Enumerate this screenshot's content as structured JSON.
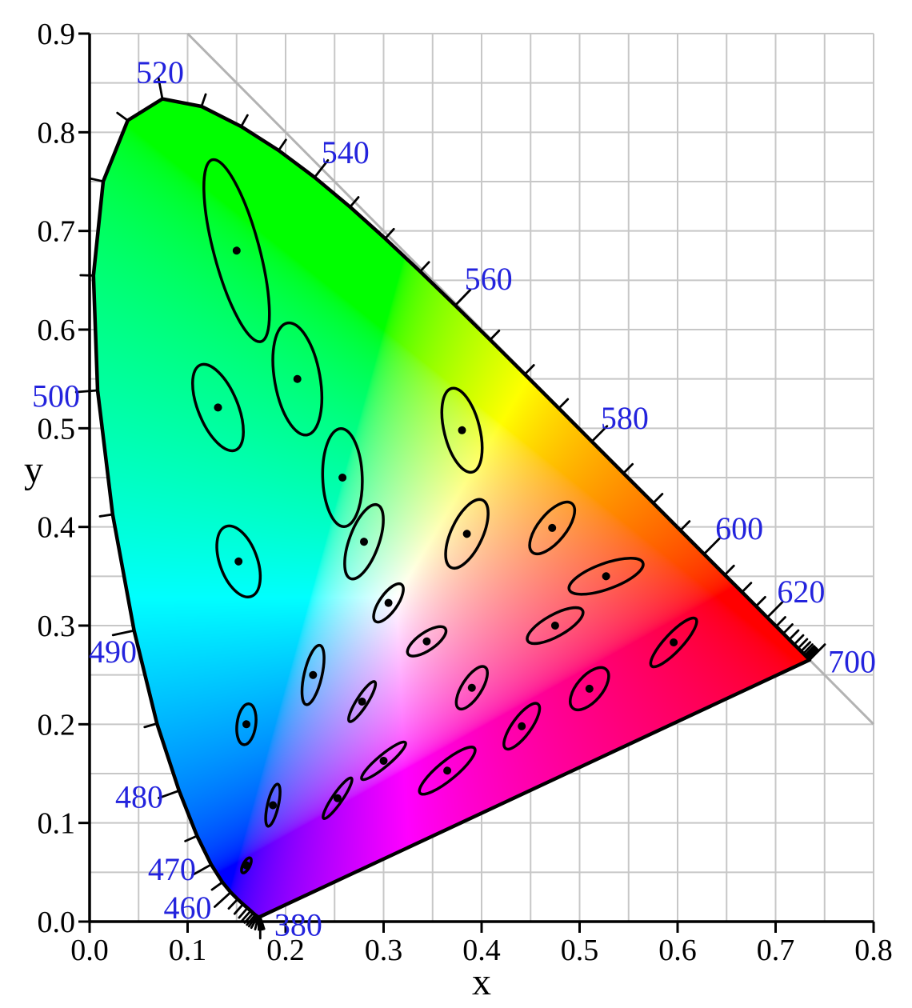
{
  "chart_data": {
    "type": "scatter",
    "variant": "CIE 1931 xy chromaticity diagram with MacAdam ellipses (10x)",
    "title": "",
    "xlabel": "x",
    "ylabel": "y",
    "xlim": [
      0.0,
      0.8
    ],
    "ylim": [
      0.0,
      0.9
    ],
    "x_tick_labels": [
      "0.0",
      "0.1",
      "0.2",
      "0.3",
      "0.4",
      "0.5",
      "0.6",
      "0.7",
      "0.8"
    ],
    "y_tick_labels": [
      "0.0",
      "0.1",
      "0.2",
      "0.3",
      "0.4",
      "0.5",
      "0.6",
      "0.7",
      "0.8",
      "0.9"
    ],
    "grid_step": 0.05,
    "grid_on": true,
    "colors": {
      "wavelength_label_blue": "#2323dd",
      "grid": "#c7c7c7",
      "diagonal_line": "#b3b3b3",
      "locus_stroke": "#000000",
      "axis": "#000000",
      "tick_label": "#000000",
      "background": "#ffffff"
    },
    "diagonal_line": {
      "from": [
        0.1,
        0.9
      ],
      "to": [
        0.8,
        0.2
      ]
    },
    "ellipse_scale": 10,
    "macadam_ellipses": [
      {
        "x": 0.16,
        "y": 0.057,
        "theta": 62.5,
        "a": 0.85,
        "b": 0.35
      },
      {
        "x": 0.187,
        "y": 0.118,
        "theta": 77.0,
        "a": 2.2,
        "b": 0.55
      },
      {
        "x": 0.253,
        "y": 0.125,
        "theta": 55.5,
        "a": 2.5,
        "b": 0.5
      },
      {
        "x": 0.15,
        "y": 0.68,
        "theta": 105.0,
        "a": 9.6,
        "b": 2.3
      },
      {
        "x": 0.131,
        "y": 0.521,
        "theta": 112.5,
        "a": 4.7,
        "b": 2.0
      },
      {
        "x": 0.212,
        "y": 0.55,
        "theta": 100.0,
        "a": 5.8,
        "b": 2.3
      },
      {
        "x": 0.258,
        "y": 0.45,
        "theta": 92.0,
        "a": 5.0,
        "b": 2.0
      },
      {
        "x": 0.152,
        "y": 0.365,
        "theta": 110.0,
        "a": 3.8,
        "b": 1.9
      },
      {
        "x": 0.28,
        "y": 0.385,
        "theta": 70.0,
        "a": 4.0,
        "b": 1.5
      },
      {
        "x": 0.38,
        "y": 0.498,
        "theta": 104.0,
        "a": 4.4,
        "b": 1.8
      },
      {
        "x": 0.16,
        "y": 0.2,
        "theta": 82.5,
        "a": 2.1,
        "b": 0.95
      },
      {
        "x": 0.228,
        "y": 0.25,
        "theta": 77.0,
        "a": 3.1,
        "b": 0.9
      },
      {
        "x": 0.305,
        "y": 0.323,
        "theta": 55.0,
        "a": 2.3,
        "b": 0.9
      },
      {
        "x": 0.385,
        "y": 0.393,
        "theta": 65.0,
        "a": 3.8,
        "b": 1.6
      },
      {
        "x": 0.472,
        "y": 0.399,
        "theta": 51.0,
        "a": 3.2,
        "b": 1.4
      },
      {
        "x": 0.527,
        "y": 0.35,
        "theta": 20.0,
        "a": 4.0,
        "b": 1.3
      },
      {
        "x": 0.475,
        "y": 0.3,
        "theta": 29.0,
        "a": 3.2,
        "b": 1.1
      },
      {
        "x": 0.51,
        "y": 0.236,
        "theta": 49.5,
        "a": 2.6,
        "b": 1.3
      },
      {
        "x": 0.596,
        "y": 0.283,
        "theta": 47.0,
        "a": 3.3,
        "b": 0.9
      },
      {
        "x": 0.344,
        "y": 0.284,
        "theta": 34.5,
        "a": 2.3,
        "b": 0.9
      },
      {
        "x": 0.39,
        "y": 0.237,
        "theta": 57.5,
        "a": 2.5,
        "b": 1.0
      },
      {
        "x": 0.441,
        "y": 0.198,
        "theta": 54.0,
        "a": 2.8,
        "b": 0.95
      },
      {
        "x": 0.278,
        "y": 0.223,
        "theta": 57.5,
        "a": 2.4,
        "b": 0.55
      },
      {
        "x": 0.3,
        "y": 0.163,
        "theta": 40.0,
        "a": 2.9,
        "b": 0.6
      },
      {
        "x": 0.365,
        "y": 0.153,
        "theta": 39.5,
        "a": 3.6,
        "b": 0.95
      }
    ],
    "wavelength_labels": [
      {
        "nm": 380,
        "lx": 0.213,
        "ly": -0.003
      },
      {
        "nm": 460,
        "lx": 0.1,
        "ly": 0.0146
      },
      {
        "nm": 470,
        "lx": 0.084,
        "ly": 0.0535
      },
      {
        "nm": 480,
        "lx": 0.0506,
        "ly": 0.127
      },
      {
        "nm": 490,
        "lx": 0.0237,
        "ly": 0.274
      },
      {
        "nm": 500,
        "lx": -0.0343,
        "ly": 0.533
      },
      {
        "nm": 520,
        "lx": 0.0718,
        "ly": 0.861
      },
      {
        "nm": 540,
        "lx": 0.261,
        "ly": 0.78
      },
      {
        "nm": 560,
        "lx": 0.407,
        "ly": 0.652
      },
      {
        "nm": 580,
        "lx": 0.546,
        "ly": 0.511
      },
      {
        "nm": 600,
        "lx": 0.663,
        "ly": 0.399
      },
      {
        "nm": 620,
        "lx": 0.726,
        "ly": 0.335
      },
      {
        "nm": 700,
        "lx": 0.778,
        "ly": 0.264
      }
    ],
    "spectral_locus": [
      [
        380,
        0.1741,
        0.005
      ],
      [
        385,
        0.174,
        0.005
      ],
      [
        390,
        0.1738,
        0.0049
      ],
      [
        395,
        0.1736,
        0.0049
      ],
      [
        400,
        0.1733,
        0.0048
      ],
      [
        405,
        0.173,
        0.0048
      ],
      [
        410,
        0.1726,
        0.0048
      ],
      [
        415,
        0.1721,
        0.0048
      ],
      [
        420,
        0.1714,
        0.0051
      ],
      [
        425,
        0.1703,
        0.0058
      ],
      [
        430,
        0.1689,
        0.0069
      ],
      [
        435,
        0.1669,
        0.0086
      ],
      [
        440,
        0.1644,
        0.0109
      ],
      [
        445,
        0.1611,
        0.0138
      ],
      [
        450,
        0.1566,
        0.0177
      ],
      [
        455,
        0.151,
        0.0227
      ],
      [
        460,
        0.144,
        0.0297
      ],
      [
        465,
        0.1355,
        0.0399
      ],
      [
        470,
        0.1241,
        0.0578
      ],
      [
        475,
        0.1096,
        0.0868
      ],
      [
        480,
        0.0913,
        0.1327
      ],
      [
        485,
        0.0687,
        0.2007
      ],
      [
        490,
        0.0454,
        0.295
      ],
      [
        495,
        0.0235,
        0.4127
      ],
      [
        500,
        0.0082,
        0.5384
      ],
      [
        505,
        0.0039,
        0.6548
      ],
      [
        510,
        0.0139,
        0.7502
      ],
      [
        515,
        0.0389,
        0.812
      ],
      [
        520,
        0.0743,
        0.8338
      ],
      [
        525,
        0.1142,
        0.8262
      ],
      [
        530,
        0.1547,
        0.8059
      ],
      [
        535,
        0.1929,
        0.7816
      ],
      [
        540,
        0.2296,
        0.7543
      ],
      [
        545,
        0.2658,
        0.7243
      ],
      [
        550,
        0.3016,
        0.6923
      ],
      [
        555,
        0.3373,
        0.6589
      ],
      [
        560,
        0.3731,
        0.6245
      ],
      [
        565,
        0.4087,
        0.5896
      ],
      [
        570,
        0.4441,
        0.5547
      ],
      [
        575,
        0.4788,
        0.5202
      ],
      [
        580,
        0.5125,
        0.4866
      ],
      [
        585,
        0.5448,
        0.4544
      ],
      [
        590,
        0.5752,
        0.4242
      ],
      [
        595,
        0.6029,
        0.3965
      ],
      [
        600,
        0.627,
        0.3725
      ],
      [
        605,
        0.6482,
        0.3514
      ],
      [
        610,
        0.6658,
        0.334
      ],
      [
        615,
        0.6801,
        0.3197
      ],
      [
        620,
        0.6915,
        0.3083
      ],
      [
        625,
        0.7006,
        0.2993
      ],
      [
        630,
        0.7079,
        0.292
      ],
      [
        635,
        0.714,
        0.2859
      ],
      [
        640,
        0.719,
        0.2809
      ],
      [
        645,
        0.723,
        0.277
      ],
      [
        650,
        0.726,
        0.274
      ],
      [
        655,
        0.7283,
        0.2717
      ],
      [
        660,
        0.73,
        0.27
      ],
      [
        665,
        0.7311,
        0.2689
      ],
      [
        670,
        0.732,
        0.268
      ],
      [
        675,
        0.7327,
        0.2673
      ],
      [
        680,
        0.7334,
        0.2666
      ],
      [
        685,
        0.734,
        0.266
      ],
      [
        690,
        0.7344,
        0.2656
      ],
      [
        695,
        0.7346,
        0.2654
      ],
      [
        700,
        0.7347,
        0.2653
      ]
    ]
  }
}
